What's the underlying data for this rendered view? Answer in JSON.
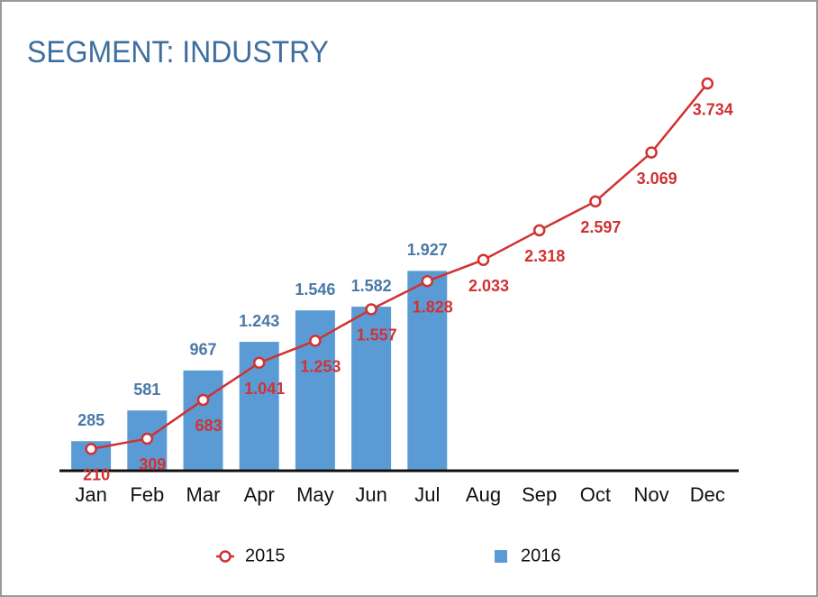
{
  "chart_data": {
    "type": "bar",
    "title": "SEGMENT: INDUSTRY",
    "categories": [
      "Jan",
      "Feb",
      "Mar",
      "Apr",
      "May",
      "Jun",
      "Jul",
      "Aug",
      "Sep",
      "Oct",
      "Nov",
      "Dec"
    ],
    "series": [
      {
        "name": "2015",
        "type": "line",
        "color": "#d03232",
        "values": [
          210,
          309,
          683,
          1041,
          1253,
          1557,
          1828,
          2033,
          2318,
          2597,
          3069,
          3734
        ],
        "value_labels": [
          "210",
          "309",
          "683",
          "1.041",
          "1.253",
          "1.557",
          "1.828",
          "2.033",
          "2.318",
          "2.597",
          "3.069",
          "3.734"
        ]
      },
      {
        "name": "2016",
        "type": "bar",
        "color": "#5b9bd5",
        "values": [
          285,
          581,
          967,
          1243,
          1546,
          1582,
          1927,
          null,
          null,
          null,
          null,
          null
        ],
        "value_labels": [
          "285",
          "581",
          "967",
          "1.243",
          "1.546",
          "1.582",
          "1.927",
          null,
          null,
          null,
          null,
          null
        ]
      }
    ],
    "ylim": [
      0,
      4000
    ],
    "legend": "bottom"
  }
}
